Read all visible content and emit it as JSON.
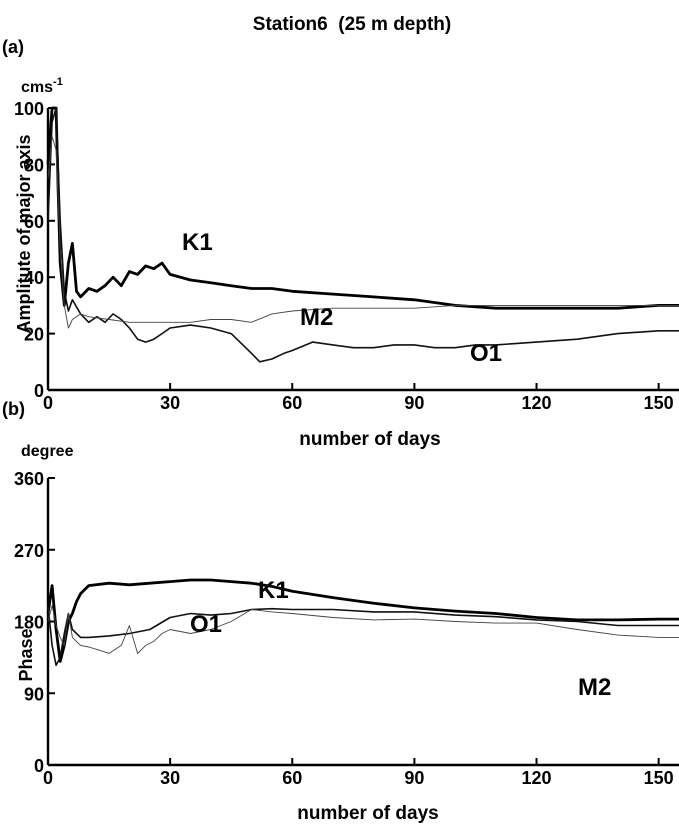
{
  "title": "Station6  (25 m depth)",
  "chart_data": [
    {
      "panel": "(a)",
      "type": "line",
      "unit": "cms-1",
      "ylabel": "Amplitute of major axis",
      "xlabel": "number of days",
      "xlim": [
        0,
        155
      ],
      "ylim": [
        0,
        100
      ],
      "xticks": [
        0,
        30,
        60,
        90,
        120,
        150
      ],
      "yticks": [
        0,
        20,
        40,
        60,
        80,
        100
      ],
      "series": [
        {
          "name": "K1",
          "style": "thick",
          "x": [
            0,
            1,
            2,
            2.5,
            3,
            4,
            5,
            6,
            7,
            8,
            10,
            12,
            14,
            16,
            18,
            20,
            22,
            24,
            26,
            28,
            30,
            35,
            40,
            45,
            50,
            55,
            60,
            70,
            80,
            90,
            100,
            110,
            120,
            130,
            140,
            150,
            155
          ],
          "y": [
            80,
            100,
            100,
            70,
            45,
            30,
            45,
            52,
            35,
            33,
            36,
            35,
            37,
            40,
            37,
            42,
            41,
            44,
            43,
            45,
            41,
            39,
            38,
            37,
            36,
            36,
            35,
            34,
            33,
            32,
            30,
            29,
            29,
            29,
            29,
            30,
            30
          ]
        },
        {
          "name": "O1",
          "style": "medium",
          "x": [
            0,
            1,
            2,
            3,
            4,
            5,
            6,
            8,
            10,
            12,
            14,
            16,
            18,
            20,
            22,
            24,
            26,
            28,
            30,
            35,
            40,
            45,
            50,
            52,
            55,
            58,
            60,
            65,
            70,
            75,
            80,
            85,
            90,
            95,
            100,
            105,
            110,
            120,
            130,
            140,
            150,
            155
          ],
          "y": [
            60,
            95,
            100,
            60,
            35,
            28,
            32,
            27,
            24,
            26,
            24,
            27,
            25,
            22,
            18,
            17,
            18,
            20,
            22,
            23,
            22,
            20,
            13,
            10,
            11,
            13,
            14,
            17,
            16,
            15,
            15,
            16,
            16,
            15,
            15,
            16,
            16,
            17,
            18,
            20,
            21,
            21
          ]
        },
        {
          "name": "M2",
          "style": "thin",
          "x": [
            0,
            1,
            2,
            3,
            4,
            5,
            6,
            8,
            10,
            15,
            20,
            25,
            30,
            35,
            40,
            45,
            50,
            55,
            60,
            70,
            80,
            90,
            100,
            110,
            120,
            130,
            140,
            150,
            155
          ],
          "y": [
            75,
            90,
            85,
            50,
            30,
            22,
            25,
            27,
            26,
            25,
            24,
            24,
            24,
            24,
            25,
            25,
            24,
            27,
            28,
            29,
            29,
            29,
            30,
            30,
            30,
            30,
            30,
            30,
            30
          ]
        }
      ],
      "annotations": [
        "K1",
        "M2",
        "O1"
      ]
    },
    {
      "panel": "(b)",
      "type": "line",
      "unit": "degree",
      "ylabel": "Phase",
      "xlabel": "number of days",
      "xlim": [
        0,
        155
      ],
      "ylim": [
        0,
        360
      ],
      "xticks": [
        0,
        30,
        60,
        90,
        120,
        150
      ],
      "yticks": [
        0,
        90,
        180,
        270,
        360
      ],
      "series": [
        {
          "name": "K1",
          "style": "thick",
          "x": [
            0,
            1,
            2,
            3,
            4,
            5,
            6,
            7,
            8,
            10,
            15,
            20,
            25,
            30,
            35,
            40,
            45,
            50,
            55,
            60,
            70,
            80,
            90,
            100,
            110,
            120,
            130,
            140,
            150,
            155
          ],
          "y": [
            190,
            225,
            170,
            130,
            150,
            180,
            190,
            205,
            215,
            225,
            228,
            226,
            228,
            230,
            232,
            232,
            230,
            228,
            224,
            218,
            210,
            203,
            197,
            193,
            190,
            185,
            182,
            182,
            183,
            183
          ]
        },
        {
          "name": "O1",
          "style": "medium",
          "x": [
            0,
            1,
            2,
            3,
            4,
            5,
            6,
            8,
            10,
            15,
            20,
            25,
            30,
            35,
            40,
            45,
            50,
            55,
            60,
            70,
            80,
            90,
            100,
            110,
            120,
            130,
            140,
            150,
            155
          ],
          "y": [
            200,
            150,
            125,
            135,
            165,
            190,
            170,
            160,
            160,
            162,
            165,
            170,
            185,
            190,
            188,
            190,
            195,
            196,
            195,
            195,
            192,
            192,
            188,
            186,
            182,
            180,
            175,
            175,
            175
          ]
        },
        {
          "name": "M2",
          "style": "thin",
          "x": [
            0,
            1,
            2,
            3,
            4,
            5,
            6,
            8,
            10,
            12,
            15,
            18,
            20,
            22,
            24,
            26,
            28,
            30,
            35,
            40,
            45,
            50,
            55,
            60,
            70,
            80,
            90,
            100,
            110,
            120,
            130,
            140,
            150,
            155
          ],
          "y": [
            180,
            200,
            175,
            160,
            150,
            190,
            160,
            150,
            148,
            145,
            140,
            150,
            175,
            140,
            150,
            155,
            165,
            170,
            165,
            170,
            180,
            195,
            192,
            190,
            185,
            182,
            183,
            180,
            178,
            178,
            170,
            163,
            160,
            160
          ]
        }
      ],
      "annotations": [
        "K1",
        "O1",
        "M2"
      ]
    }
  ]
}
